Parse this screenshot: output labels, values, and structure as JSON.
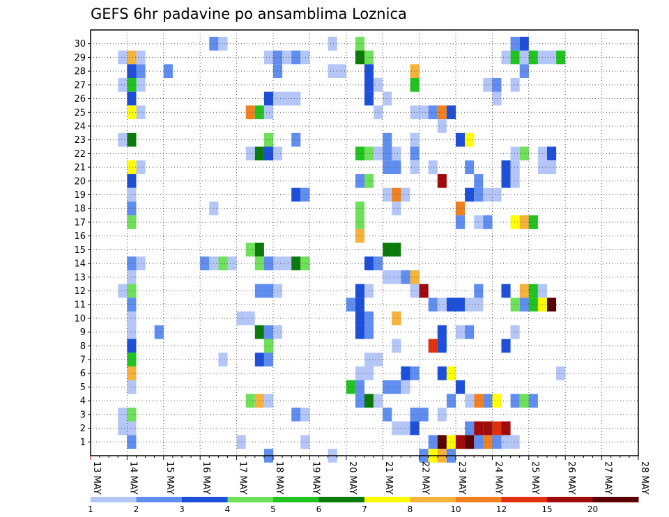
{
  "chart_data": {
    "type": "heatmap",
    "title": "GEFS 6hr padavine po ansamblima Loznica",
    "xlabel": "",
    "ylabel": "",
    "x_ticks": [
      "13 MAY",
      "14 MAY",
      "15 MAY",
      "16 MAY",
      "17 MAY",
      "18 MAY",
      "19 MAY",
      "20 MAY",
      "21 MAY",
      "22 MAY",
      "23 MAY",
      "24 MAY",
      "25 MAY",
      "26 MAY",
      "27 MAY",
      "28 MAY"
    ],
    "x_steps_per_day": 4,
    "y_ticks": [
      "1",
      "2",
      "3",
      "4",
      "5",
      "6",
      "7",
      "8",
      "9",
      "10",
      "11",
      "12",
      "13",
      "14",
      "15",
      "16",
      "17",
      "18",
      "19",
      "20",
      "21",
      "22",
      "23",
      "24",
      "25",
      "26",
      "27",
      "28",
      "29",
      "30"
    ],
    "grid": true,
    "colorbar": {
      "labels": [
        "1",
        "2",
        "3",
        "4",
        "5",
        "6",
        "7",
        "8",
        "10",
        "12",
        "15",
        "20"
      ],
      "colors": [
        "#b3c6f7",
        "#5f8df0",
        "#1e4fd8",
        "#6fe05a",
        "#21c321",
        "#0a7a0a",
        "#ffff00",
        "#f7b23a",
        "#f08020",
        "#e03010",
        "#a00a0a",
        "#5a0000"
      ]
    },
    "cells_note": "each cell: [time step (6h index from 13 MAY 00Z), member 0-30, category index into colorbar]",
    "cells": [
      [
        4,
        29,
        7
      ],
      [
        4,
        28,
        2
      ],
      [
        4,
        27,
        4
      ],
      [
        4,
        26,
        2
      ],
      [
        4,
        25,
        6
      ],
      [
        4,
        23,
        5
      ],
      [
        4,
        21,
        6
      ],
      [
        4,
        20,
        2
      ],
      [
        4,
        19,
        0
      ],
      [
        4,
        18,
        1
      ],
      [
        4,
        17,
        3
      ],
      [
        4,
        14,
        1
      ],
      [
        4,
        13,
        0
      ],
      [
        4,
        12,
        3
      ],
      [
        4,
        11,
        1
      ],
      [
        4,
        10,
        0
      ],
      [
        4,
        9,
        0
      ],
      [
        4,
        8,
        2
      ],
      [
        4,
        7,
        4
      ],
      [
        4,
        6,
        7
      ],
      [
        4,
        5,
        0
      ],
      [
        4,
        3,
        3
      ],
      [
        4,
        1,
        1
      ],
      [
        3,
        29,
        0
      ],
      [
        3,
        27,
        0
      ],
      [
        3,
        23,
        0
      ],
      [
        3,
        12,
        0
      ],
      [
        3,
        3,
        0
      ],
      [
        3,
        2,
        0
      ],
      [
        4,
        2,
        0
      ],
      [
        5,
        28,
        1
      ],
      [
        5,
        27,
        0
      ],
      [
        5,
        25,
        0
      ],
      [
        5,
        21,
        0
      ],
      [
        5,
        14,
        0
      ],
      [
        5,
        29,
        0
      ],
      [
        8,
        28,
        1
      ],
      [
        7,
        9,
        1
      ],
      [
        13,
        30,
        1
      ],
      [
        14,
        30,
        0
      ],
      [
        13,
        18,
        0
      ],
      [
        12,
        14,
        1
      ],
      [
        13,
        14,
        0
      ],
      [
        14,
        14,
        3
      ],
      [
        15,
        14,
        0
      ],
      [
        14,
        7,
        0
      ],
      [
        16,
        10,
        0
      ],
      [
        17,
        10,
        0
      ],
      [
        16,
        1,
        0
      ],
      [
        17,
        15,
        3
      ],
      [
        18,
        15,
        5
      ],
      [
        18,
        14,
        3
      ],
      [
        19,
        14,
        1
      ],
      [
        20,
        14,
        0
      ],
      [
        21,
        14,
        0
      ],
      [
        22,
        14,
        5
      ],
      [
        23,
        14,
        3
      ],
      [
        19,
        29,
        0
      ],
      [
        20,
        29,
        1
      ],
      [
        21,
        29,
        0
      ],
      [
        22,
        29,
        1
      ],
      [
        23,
        29,
        0
      ],
      [
        20,
        28,
        1
      ],
      [
        19,
        26,
        2
      ],
      [
        20,
        26,
        0
      ],
      [
        21,
        26,
        0
      ],
      [
        22,
        26,
        0
      ],
      [
        17,
        25,
        8
      ],
      [
        18,
        25,
        4
      ],
      [
        19,
        25,
        0
      ],
      [
        19,
        23,
        3
      ],
      [
        22,
        23,
        1
      ],
      [
        17,
        22,
        0
      ],
      [
        18,
        22,
        5
      ],
      [
        19,
        22,
        2
      ],
      [
        20,
        22,
        0
      ],
      [
        22,
        19,
        2
      ],
      [
        23,
        19,
        1
      ],
      [
        18,
        12,
        1
      ],
      [
        19,
        12,
        1
      ],
      [
        20,
        12,
        0
      ],
      [
        18,
        9,
        5
      ],
      [
        19,
        9,
        1
      ],
      [
        20,
        9,
        0
      ],
      [
        19,
        8,
        3
      ],
      [
        18,
        7,
        2
      ],
      [
        19,
        7,
        1
      ],
      [
        17,
        4,
        3
      ],
      [
        18,
        4,
        7
      ],
      [
        19,
        4,
        0
      ],
      [
        22,
        3,
        1
      ],
      [
        23,
        3,
        0
      ],
      [
        23,
        1,
        0
      ],
      [
        19,
        0,
        1
      ],
      [
        26,
        30,
        0
      ],
      [
        29,
        30,
        3
      ],
      [
        29,
        29,
        5
      ],
      [
        30,
        29,
        3
      ],
      [
        26,
        28,
        0
      ],
      [
        27,
        28,
        0
      ],
      [
        30,
        28,
        2
      ],
      [
        30,
        27,
        2
      ],
      [
        30,
        26,
        2
      ],
      [
        29,
        22,
        4
      ],
      [
        30,
        22,
        3
      ],
      [
        31,
        22,
        0
      ],
      [
        32,
        22,
        0
      ],
      [
        33,
        22,
        0
      ],
      [
        29,
        20,
        1
      ],
      [
        30,
        20,
        3
      ],
      [
        29,
        17,
        3
      ],
      [
        29,
        16,
        7
      ],
      [
        29,
        18,
        3
      ],
      [
        30,
        14,
        2
      ],
      [
        31,
        14,
        1
      ],
      [
        29,
        12,
        2
      ],
      [
        30,
        12,
        0
      ],
      [
        28,
        11,
        1
      ],
      [
        29,
        11,
        2
      ],
      [
        29,
        10,
        2
      ],
      [
        30,
        10,
        1
      ],
      [
        29,
        9,
        2
      ],
      [
        30,
        9,
        1
      ],
      [
        29,
        6,
        0
      ],
      [
        30,
        6,
        0
      ],
      [
        30,
        7,
        0
      ],
      [
        31,
        7,
        0
      ],
      [
        28,
        5,
        4
      ],
      [
        29,
        5,
        1
      ],
      [
        29,
        4,
        1
      ],
      [
        30,
        4,
        5
      ],
      [
        31,
        4,
        0
      ],
      [
        26,
        0,
        0
      ],
      [
        31,
        27,
        0
      ],
      [
        32,
        26,
        0
      ],
      [
        31,
        25,
        0
      ],
      [
        32,
        23,
        1
      ],
      [
        32,
        22,
        1
      ],
      [
        32,
        21,
        1
      ],
      [
        33,
        21,
        1
      ],
      [
        32,
        19,
        0
      ],
      [
        33,
        19,
        8
      ],
      [
        34,
        19,
        0
      ],
      [
        33,
        18,
        0
      ],
      [
        32,
        15,
        5
      ],
      [
        33,
        15,
        5
      ],
      [
        32,
        13,
        0
      ],
      [
        33,
        13,
        0
      ],
      [
        34,
        13,
        1
      ],
      [
        35,
        13,
        7
      ],
      [
        33,
        10,
        7
      ],
      [
        32,
        5,
        1
      ],
      [
        33,
        5,
        1
      ],
      [
        34,
        5,
        0
      ],
      [
        32,
        3,
        1
      ],
      [
        33,
        2,
        0
      ],
      [
        34,
        2,
        0
      ],
      [
        33,
        8,
        0
      ],
      [
        34,
        6,
        2
      ],
      [
        35,
        6,
        1
      ],
      [
        35,
        28,
        7
      ],
      [
        35,
        27,
        4
      ],
      [
        35,
        25,
        0
      ],
      [
        35,
        23,
        0
      ],
      [
        35,
        22,
        1
      ],
      [
        35,
        21,
        0
      ],
      [
        35,
        12,
        0
      ],
      [
        36,
        12,
        10
      ],
      [
        35,
        3,
        1
      ],
      [
        35,
        2,
        2
      ],
      [
        36,
        3,
        1
      ],
      [
        36,
        25,
        0
      ],
      [
        37,
        25,
        1
      ],
      [
        38,
        25,
        8
      ],
      [
        39,
        25,
        2
      ],
      [
        38,
        24,
        0
      ],
      [
        37,
        21,
        0
      ],
      [
        38,
        20,
        10
      ],
      [
        37,
        11,
        1
      ],
      [
        38,
        11,
        0
      ],
      [
        39,
        11,
        2
      ],
      [
        40,
        11,
        2
      ],
      [
        38,
        9,
        2
      ],
      [
        38,
        8,
        2
      ],
      [
        37,
        8,
        9
      ],
      [
        38,
        6,
        2
      ],
      [
        39,
        6,
        6
      ],
      [
        39,
        4,
        1
      ],
      [
        38,
        3,
        0
      ],
      [
        37,
        1,
        1
      ],
      [
        38,
        1,
        11
      ],
      [
        39,
        1,
        6
      ],
      [
        40,
        1,
        10
      ],
      [
        41,
        1,
        11
      ],
      [
        42,
        1,
        9
      ],
      [
        43,
        1,
        8
      ],
      [
        44,
        1,
        1
      ],
      [
        36,
        0,
        1
      ],
      [
        37,
        0,
        6
      ],
      [
        38,
        0,
        7
      ],
      [
        39,
        0,
        1
      ],
      [
        40,
        23,
        2
      ],
      [
        41,
        23,
        6
      ],
      [
        41,
        21,
        1
      ],
      [
        40,
        17,
        1
      ],
      [
        40,
        18,
        8
      ],
      [
        40,
        9,
        0
      ],
      [
        41,
        9,
        1
      ],
      [
        41,
        11,
        0
      ],
      [
        42,
        11,
        0
      ],
      [
        42,
        12,
        1
      ],
      [
        40,
        5,
        2
      ],
      [
        42,
        4,
        8
      ],
      [
        43,
        4,
        1
      ],
      [
        44,
        4,
        6
      ],
      [
        41,
        4,
        0
      ],
      [
        41,
        2,
        1
      ],
      [
        42,
        2,
        10
      ],
      [
        43,
        2,
        10
      ],
      [
        44,
        2,
        9
      ],
      [
        45,
        2,
        10
      ],
      [
        42,
        1,
        1
      ],
      [
        41,
        19,
        2
      ],
      [
        42,
        19,
        1
      ],
      [
        43,
        19,
        0
      ],
      [
        44,
        19,
        0
      ],
      [
        42,
        20,
        1
      ],
      [
        42,
        17,
        0
      ],
      [
        43,
        17,
        1
      ],
      [
        44,
        26,
        0
      ],
      [
        43,
        27,
        0
      ],
      [
        44,
        27,
        1
      ],
      [
        45,
        29,
        0
      ],
      [
        46,
        29,
        4
      ],
      [
        47,
        29,
        0
      ],
      [
        48,
        29,
        4
      ],
      [
        49,
        29,
        0
      ],
      [
        50,
        29,
        0
      ],
      [
        51,
        29,
        4
      ],
      [
        46,
        30,
        1
      ],
      [
        47,
        30,
        2
      ],
      [
        47,
        28,
        1
      ],
      [
        46,
        27,
        0
      ],
      [
        46,
        22,
        0
      ],
      [
        47,
        22,
        3
      ],
      [
        49,
        22,
        0
      ],
      [
        50,
        22,
        2
      ],
      [
        45,
        21,
        2
      ],
      [
        46,
        21,
        0
      ],
      [
        49,
        21,
        0
      ],
      [
        50,
        21,
        0
      ],
      [
        45,
        20,
        2
      ],
      [
        46,
        20,
        0
      ],
      [
        46,
        17,
        6
      ],
      [
        47,
        17,
        7
      ],
      [
        48,
        17,
        4
      ],
      [
        45,
        12,
        2
      ],
      [
        47,
        12,
        7
      ],
      [
        48,
        12,
        4
      ],
      [
        49,
        12,
        0
      ],
      [
        46,
        11,
        3
      ],
      [
        47,
        11,
        1
      ],
      [
        48,
        11,
        4
      ],
      [
        49,
        11,
        6
      ],
      [
        50,
        11,
        11
      ],
      [
        46,
        4,
        1
      ],
      [
        47,
        4,
        3
      ],
      [
        48,
        4,
        1
      ],
      [
        46,
        9,
        0
      ],
      [
        45,
        8,
        2
      ],
      [
        51,
        6,
        0
      ],
      [
        45,
        1,
        0
      ],
      [
        46,
        1,
        0
      ]
    ]
  }
}
